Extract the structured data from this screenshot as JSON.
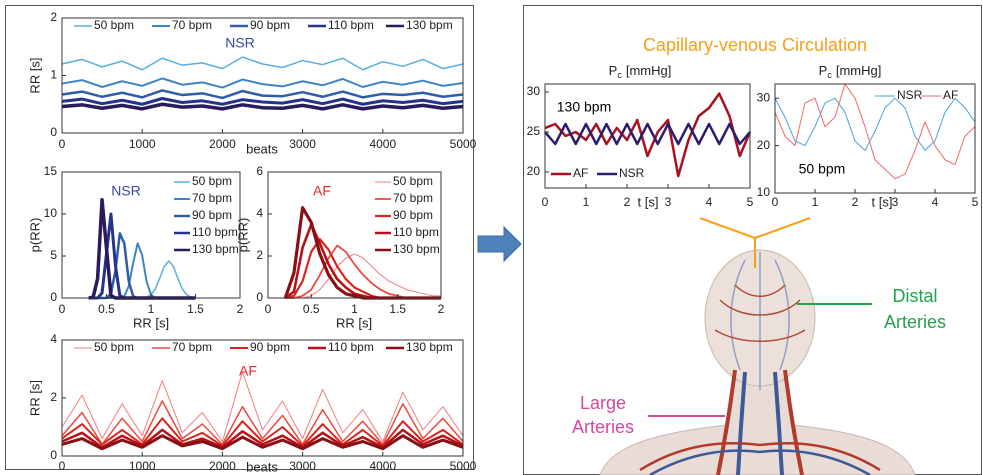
{
  "chart_data": [
    {
      "type": "line",
      "annotation": "NSR",
      "annotation_color": "#3a45a8",
      "xlabel": "beats",
      "ylabel": "RR [s]",
      "legend": "top",
      "x": [
        0,
        250,
        500,
        750,
        1000,
        1250,
        1500,
        1750,
        2000,
        2250,
        2500,
        2750,
        3000,
        3250,
        3500,
        3750,
        4000,
        4250,
        4500,
        4750,
        5000
      ],
      "xlim": [
        0,
        5000
      ],
      "xticks": [
        0,
        1000,
        2000,
        3000,
        4000,
        5000
      ],
      "ylim": [
        0,
        2
      ],
      "yticks": [
        0,
        1,
        2
      ],
      "series": [
        {
          "name": "50 bpm",
          "color": "#5aaee0",
          "values": [
            1.2,
            1.28,
            1.15,
            1.25,
            1.1,
            1.3,
            1.18,
            1.22,
            1.12,
            1.32,
            1.2,
            1.14,
            1.26,
            1.19,
            1.3,
            1.1,
            1.24,
            1.16,
            1.28,
            1.12,
            1.2
          ]
        },
        {
          "name": "70 bpm",
          "color": "#3d85c8",
          "values": [
            0.86,
            0.92,
            0.8,
            0.9,
            0.82,
            0.95,
            0.84,
            0.88,
            0.79,
            0.93,
            0.85,
            0.81,
            0.9,
            0.83,
            0.94,
            0.8,
            0.89,
            0.84,
            0.91,
            0.82,
            0.87
          ]
        },
        {
          "name": "90 bpm",
          "color": "#2f5da8",
          "values": [
            0.67,
            0.72,
            0.63,
            0.7,
            0.62,
            0.74,
            0.66,
            0.69,
            0.61,
            0.73,
            0.65,
            0.64,
            0.71,
            0.63,
            0.72,
            0.62,
            0.68,
            0.66,
            0.7,
            0.63,
            0.67
          ]
        },
        {
          "name": "110 bpm",
          "color": "#24348c",
          "values": [
            0.55,
            0.59,
            0.51,
            0.57,
            0.5,
            0.6,
            0.53,
            0.56,
            0.5,
            0.58,
            0.54,
            0.52,
            0.58,
            0.51,
            0.59,
            0.5,
            0.56,
            0.53,
            0.57,
            0.51,
            0.55
          ]
        },
        {
          "name": "130 bpm",
          "color": "#2a1a5e",
          "values": [
            0.46,
            0.49,
            0.43,
            0.48,
            0.42,
            0.5,
            0.45,
            0.47,
            0.42,
            0.49,
            0.44,
            0.43,
            0.48,
            0.42,
            0.49,
            0.42,
            0.47,
            0.44,
            0.48,
            0.43,
            0.46
          ]
        }
      ]
    },
    {
      "type": "line",
      "annotation": "NSR",
      "annotation_color": "#3a45a8",
      "xlabel": "RR [s]",
      "ylabel": "p(RR)",
      "legend": "right",
      "x": [
        0.3,
        0.35,
        0.4,
        0.45,
        0.5,
        0.55,
        0.6,
        0.65,
        0.7,
        0.75,
        0.8,
        0.85,
        0.9,
        0.95,
        1,
        1.05,
        1.1,
        1.15,
        1.2,
        1.25,
        1.3,
        1.35,
        1.4,
        1.45,
        1.5
      ],
      "xlim": [
        0,
        2
      ],
      "xticks": [
        0,
        0.5,
        1,
        1.5,
        2
      ],
      "ylim": [
        0,
        15
      ],
      "yticks": [
        0,
        5,
        10,
        15
      ],
      "series": [
        {
          "name": "50 bpm",
          "color": "#5aaee0",
          "values": [
            0,
            0,
            0,
            0,
            0,
            0,
            0,
            0,
            0,
            0,
            0,
            0,
            0,
            0.1,
            0.4,
            1.1,
            2.4,
            3.8,
            4.4,
            3.8,
            2.4,
            1.1,
            0.4,
            0.1,
            0
          ]
        },
        {
          "name": "70 bpm",
          "color": "#3d85c8",
          "values": [
            0,
            0,
            0,
            0,
            0,
            0,
            0,
            0,
            0.2,
            1.4,
            4.2,
            6.5,
            5.1,
            2,
            0.4,
            0,
            0,
            0,
            0,
            0,
            0,
            0,
            0,
            0,
            0
          ]
        },
        {
          "name": "90 bpm",
          "color": "#2f5da8",
          "values": [
            0,
            0,
            0,
            0,
            0,
            0.5,
            3.2,
            7.7,
            6.5,
            2,
            0.2,
            0,
            0,
            0,
            0,
            0,
            0,
            0,
            0,
            0,
            0,
            0,
            0,
            0,
            0
          ]
        },
        {
          "name": "110 bpm",
          "color": "#24348c",
          "values": [
            0,
            0,
            0,
            0.6,
            5.3,
            10,
            3.9,
            0.3,
            0,
            0,
            0,
            0,
            0,
            0,
            0,
            0,
            0,
            0,
            0,
            0,
            0,
            0,
            0,
            0,
            0
          ]
        },
        {
          "name": "130 bpm",
          "color": "#2a1a5e",
          "values": [
            0,
            0.1,
            2.3,
            11.7,
            5.9,
            0.3,
            0,
            0,
            0,
            0,
            0,
            0,
            0,
            0,
            0,
            0,
            0,
            0,
            0,
            0,
            0,
            0,
            0,
            0,
            0
          ]
        }
      ]
    },
    {
      "type": "line",
      "annotation": "AF",
      "annotation_color": "#e8262a",
      "xlabel": "RR [s]",
      "ylabel": "p(RR)",
      "legend": "right",
      "x": [
        0.2,
        0.3,
        0.4,
        0.5,
        0.6,
        0.7,
        0.8,
        0.9,
        1,
        1.1,
        1.2,
        1.3,
        1.4,
        1.5,
        1.6,
        1.7,
        1.8,
        1.9,
        2
      ],
      "xlim": [
        0,
        2
      ],
      "xticks": [
        0,
        0.5,
        1,
        1.5,
        2
      ],
      "ylim": [
        0,
        6
      ],
      "yticks": [
        0,
        2,
        4,
        6
      ],
      "series": [
        {
          "name": "50 bpm",
          "color": "#f47c7c",
          "values": [
            0,
            0,
            0,
            0.1,
            0.4,
            0.9,
            1.5,
            1.9,
            2.1,
            1.9,
            1.5,
            1.1,
            0.8,
            0.6,
            0.4,
            0.3,
            0.2,
            0.1,
            0.1
          ]
        },
        {
          "name": "70 bpm",
          "color": "#ec4a3e",
          "values": [
            0,
            0,
            0.1,
            0.4,
            1.1,
            1.9,
            2.5,
            2.2,
            1.6,
            1.1,
            0.7,
            0.4,
            0.2,
            0.1,
            0,
            0,
            0,
            0,
            0
          ]
        },
        {
          "name": "90 bpm",
          "color": "#d9261c",
          "values": [
            0,
            0.1,
            0.8,
            2.2,
            2.8,
            2.3,
            1.5,
            0.9,
            0.5,
            0.3,
            0.1,
            0,
            0,
            0,
            0,
            0,
            0,
            0,
            0
          ]
        },
        {
          "name": "110 bpm",
          "color": "#b31217",
          "values": [
            0,
            0.3,
            2.4,
            3.5,
            2.6,
            1.6,
            0.9,
            0.5,
            0.2,
            0.1,
            0,
            0,
            0,
            0,
            0,
            0,
            0,
            0,
            0
          ]
        },
        {
          "name": "130 bpm",
          "color": "#8a0f14",
          "values": [
            0,
            1.2,
            4.3,
            3.6,
            2.1,
            1.1,
            0.5,
            0.2,
            0.1,
            0,
            0,
            0,
            0,
            0,
            0,
            0,
            0,
            0,
            0
          ]
        }
      ]
    },
    {
      "type": "line",
      "annotation": "AF",
      "annotation_color": "#e8262a",
      "xlabel": "beats",
      "ylabel": "RR [s]",
      "legend": "top",
      "x": [
        0,
        250,
        500,
        750,
        1000,
        1250,
        1500,
        1750,
        2000,
        2250,
        2500,
        2750,
        3000,
        3250,
        3500,
        3750,
        4000,
        4250,
        4500,
        4750,
        5000
      ],
      "xlim": [
        0,
        5000
      ],
      "xticks": [
        0,
        1000,
        2000,
        3000,
        4000,
        5000
      ],
      "ylim": [
        0,
        4
      ],
      "yticks": [
        0,
        2,
        4
      ],
      "series": [
        {
          "name": "50 bpm",
          "color": "#f47c7c",
          "values": [
            1.0,
            2.1,
            0.6,
            1.8,
            0.7,
            2.6,
            0.8,
            1.5,
            0.5,
            2.9,
            0.9,
            1.9,
            0.6,
            2.3,
            0.8,
            1.6,
            0.5,
            2.2,
            0.9,
            1.7,
            0.7
          ]
        },
        {
          "name": "70 bpm",
          "color": "#ec4a3e",
          "values": [
            0.7,
            1.5,
            0.4,
            1.3,
            0.5,
            1.9,
            0.6,
            1.1,
            0.4,
            1.7,
            0.6,
            1.4,
            0.4,
            1.6,
            0.5,
            1.2,
            0.4,
            1.8,
            0.6,
            1.3,
            0.5
          ]
        },
        {
          "name": "90 bpm",
          "color": "#d9261c",
          "values": [
            0.6,
            1.1,
            0.4,
            0.9,
            0.4,
            1.3,
            0.5,
            0.8,
            0.35,
            1.2,
            0.5,
            1,
            0.35,
            1.1,
            0.4,
            0.9,
            0.35,
            1.2,
            0.5,
            0.9,
            0.4
          ]
        },
        {
          "name": "110 bpm",
          "color": "#b31217",
          "values": [
            0.5,
            0.8,
            0.3,
            0.7,
            0.35,
            0.9,
            0.4,
            0.6,
            0.3,
            0.85,
            0.4,
            0.7,
            0.3,
            0.8,
            0.35,
            0.65,
            0.3,
            0.9,
            0.4,
            0.7,
            0.35
          ]
        },
        {
          "name": "130 bpm",
          "color": "#8a0f14",
          "values": [
            0.4,
            0.6,
            0.25,
            0.55,
            0.3,
            0.7,
            0.35,
            0.5,
            0.25,
            0.65,
            0.3,
            0.55,
            0.25,
            0.6,
            0.3,
            0.5,
            0.25,
            0.7,
            0.3,
            0.55,
            0.3
          ]
        }
      ]
    },
    {
      "type": "line",
      "title_symbol": "P",
      "title_subscript": "c",
      "title_unit": "[mmHg]",
      "annotation": "130 bpm",
      "annotation_color": "#000000",
      "xlabel": "t [s]",
      "legend": "lower left",
      "x": [
        0,
        0.25,
        0.5,
        0.75,
        1,
        1.25,
        1.5,
        1.75,
        2,
        2.25,
        2.5,
        2.75,
        3,
        3.25,
        3.5,
        3.75,
        4,
        4.25,
        4.5,
        4.75,
        5
      ],
      "xlim": [
        0,
        5
      ],
      "xticks": [
        0,
        1,
        2,
        3,
        4,
        5
      ],
      "ylim": [
        18,
        31
      ],
      "yticks": [
        20,
        25,
        30
      ],
      "series": [
        {
          "name": "AF",
          "color": "#a8121e",
          "values": [
            25.5,
            26,
            24.5,
            25,
            24,
            26,
            23.5,
            25.5,
            24,
            26.5,
            22,
            25,
            26.5,
            19.5,
            24,
            27,
            28,
            29.8,
            27,
            22,
            25
          ]
        },
        {
          "name": "NSR",
          "color": "#2c1d6e",
          "values": [
            25,
            23.5,
            26,
            23.5,
            26,
            23.5,
            26,
            23.5,
            26,
            23.5,
            26,
            23.5,
            26,
            23.5,
            26,
            23.5,
            26,
            23.5,
            26,
            23.5,
            25
          ]
        }
      ]
    },
    {
      "type": "line",
      "title_symbol": "P",
      "title_subscript": "c",
      "title_unit": "[mmHg]",
      "annotation": "50 bpm",
      "annotation_color": "#000000",
      "xlabel": "t [s]",
      "legend": "upper right",
      "x": [
        0,
        0.25,
        0.5,
        0.75,
        1,
        1.25,
        1.5,
        1.75,
        2,
        2.25,
        2.5,
        2.75,
        3,
        3.25,
        3.5,
        3.75,
        4,
        4.25,
        4.5,
        4.75,
        5
      ],
      "xlim": [
        0,
        5
      ],
      "xticks": [
        0,
        1,
        2,
        3,
        4,
        5
      ],
      "ylim": [
        10,
        33
      ],
      "yticks": [
        10,
        20,
        30
      ],
      "series": [
        {
          "name": "NSR",
          "color": "#4aa3df",
          "values": [
            30,
            26,
            21,
            20,
            24,
            29,
            30,
            27,
            21,
            19,
            23,
            28,
            30,
            28,
            22,
            19,
            21,
            27,
            30,
            28,
            25
          ]
        },
        {
          "name": "AF",
          "color": "#f06a6a",
          "values": [
            27,
            22,
            20,
            29,
            30,
            24,
            26,
            33,
            30,
            24,
            17,
            15,
            13,
            14,
            19,
            25,
            20,
            17,
            16,
            22,
            24
          ]
        }
      ]
    }
  ],
  "right_panel": {
    "title": "Capillary-venous Circulation",
    "labels": [
      {
        "lines": [
          "Distal",
          "Arteries"
        ]
      },
      {
        "lines": [
          "Large",
          "Arteries"
        ]
      }
    ]
  }
}
